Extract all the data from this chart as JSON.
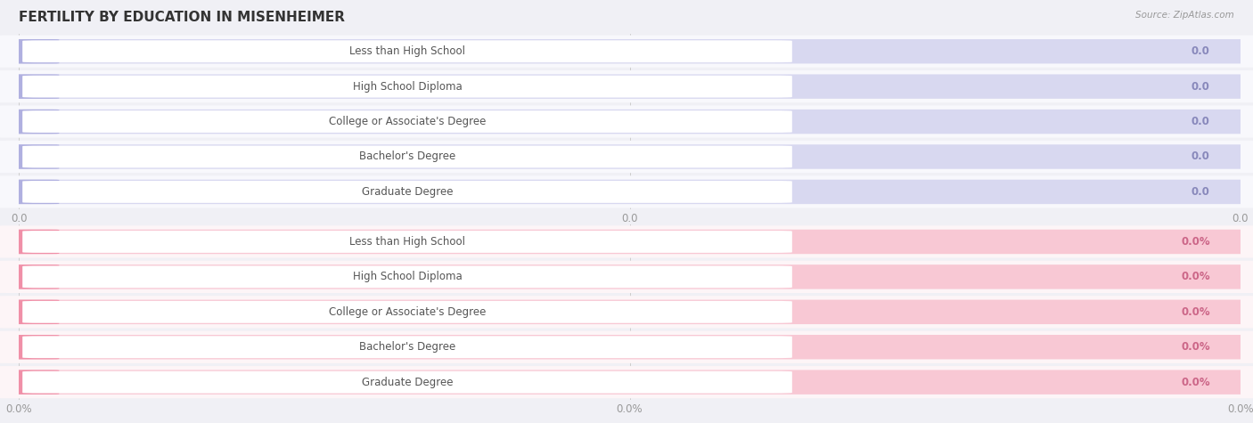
{
  "title": "FERTILITY BY EDUCATION IN MISENHEIMER",
  "source": "Source: ZipAtlas.com",
  "categories": [
    "Less than High School",
    "High School Diploma",
    "College or Associate's Degree",
    "Bachelor's Degree",
    "Graduate Degree"
  ],
  "values_top": [
    0.0,
    0.0,
    0.0,
    0.0,
    0.0
  ],
  "values_bottom": [
    0.0,
    0.0,
    0.0,
    0.0,
    0.0
  ],
  "top_bar_color": "#b0b0e0",
  "top_bar_bg": "#d8d8f0",
  "top_label_color": "#555555",
  "top_value_color": "#8888bb",
  "bottom_bar_color": "#f090a8",
  "bottom_bar_bg": "#f8c8d4",
  "bottom_label_color": "#555555",
  "bottom_value_color": "#cc6688",
  "background_color": "#f0f0f5",
  "row_bg_color": "#f8f8fc",
  "row_bg_color_bottom": "#fdf5f7",
  "title_fontsize": 11,
  "label_fontsize": 8.5,
  "value_fontsize": 8.5,
  "tick_fontsize": 8.5,
  "bar_height": 0.68,
  "xtick_labels_top": [
    "0.0",
    "0.0",
    "0.0"
  ],
  "xtick_labels_bottom": [
    "0.0%",
    "0.0%",
    "0.0%"
  ]
}
